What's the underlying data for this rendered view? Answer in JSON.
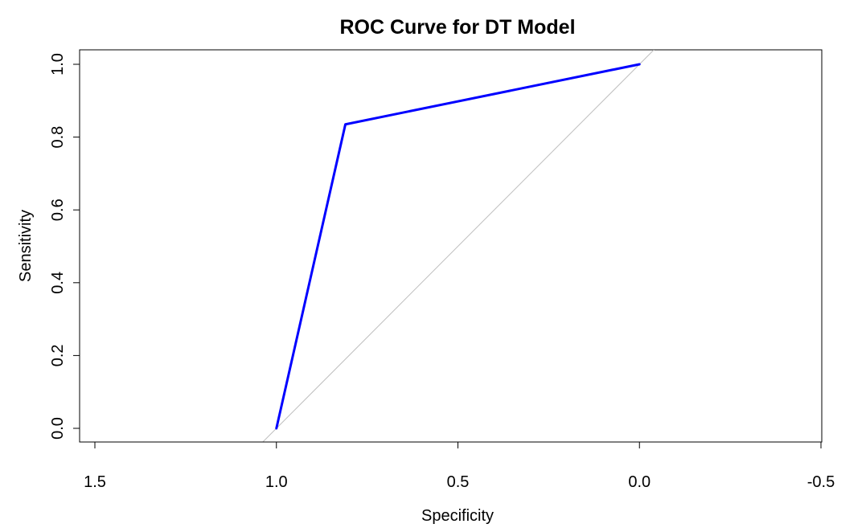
{
  "chart_data": {
    "type": "line",
    "title": "ROC Curve for DT Model",
    "xlabel": "Specificity",
    "ylabel": "Sensitivity",
    "x_reversed": true,
    "xlim": [
      1.5,
      -0.5
    ],
    "ylim": [
      0,
      1
    ],
    "xticks": [
      1.5,
      1.0,
      0.5,
      0.0,
      -0.5
    ],
    "xtick_labels": [
      "1.5",
      "1.0",
      "0.5",
      "0.0",
      "-0.5"
    ],
    "yticks": [
      0.0,
      0.2,
      0.4,
      0.6,
      0.8,
      1.0
    ],
    "ytick_labels": [
      "0.0",
      "0.2",
      "0.4",
      "0.6",
      "0.8",
      "1.0"
    ],
    "grid": false,
    "series": [
      {
        "color": "#0000ff",
        "x": [
          1.0,
          0.81,
          0.0
        ],
        "y": [
          0.0,
          0.835,
          1.0
        ]
      }
    ],
    "reference_line": {
      "color": "#bebebe",
      "x": [
        1.04,
        -0.04
      ],
      "y": [
        -0.04,
        1.04
      ]
    }
  }
}
